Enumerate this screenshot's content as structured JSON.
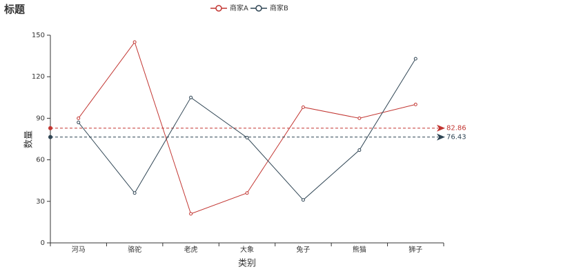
{
  "chart_data": {
    "type": "line",
    "title": "标题",
    "x_label": "类别",
    "y_label": "数量",
    "categories": [
      "河马",
      "骆驼",
      "老虎",
      "大象",
      "兔子",
      "熊猫",
      "狮子"
    ],
    "series": [
      {
        "name": "商家A",
        "color": "#c23531",
        "values": [
          90,
          145,
          21,
          36,
          98,
          90,
          100
        ],
        "average": 82.86
      },
      {
        "name": "商家B",
        "color": "#2f4554",
        "values": [
          87,
          36,
          105,
          76,
          31,
          67,
          133
        ],
        "average": 76.43
      }
    ],
    "ylim": [
      0,
      150
    ],
    "yticks": [
      0,
      30,
      60,
      90,
      120,
      150
    ],
    "grid": false,
    "legend": "top"
  }
}
